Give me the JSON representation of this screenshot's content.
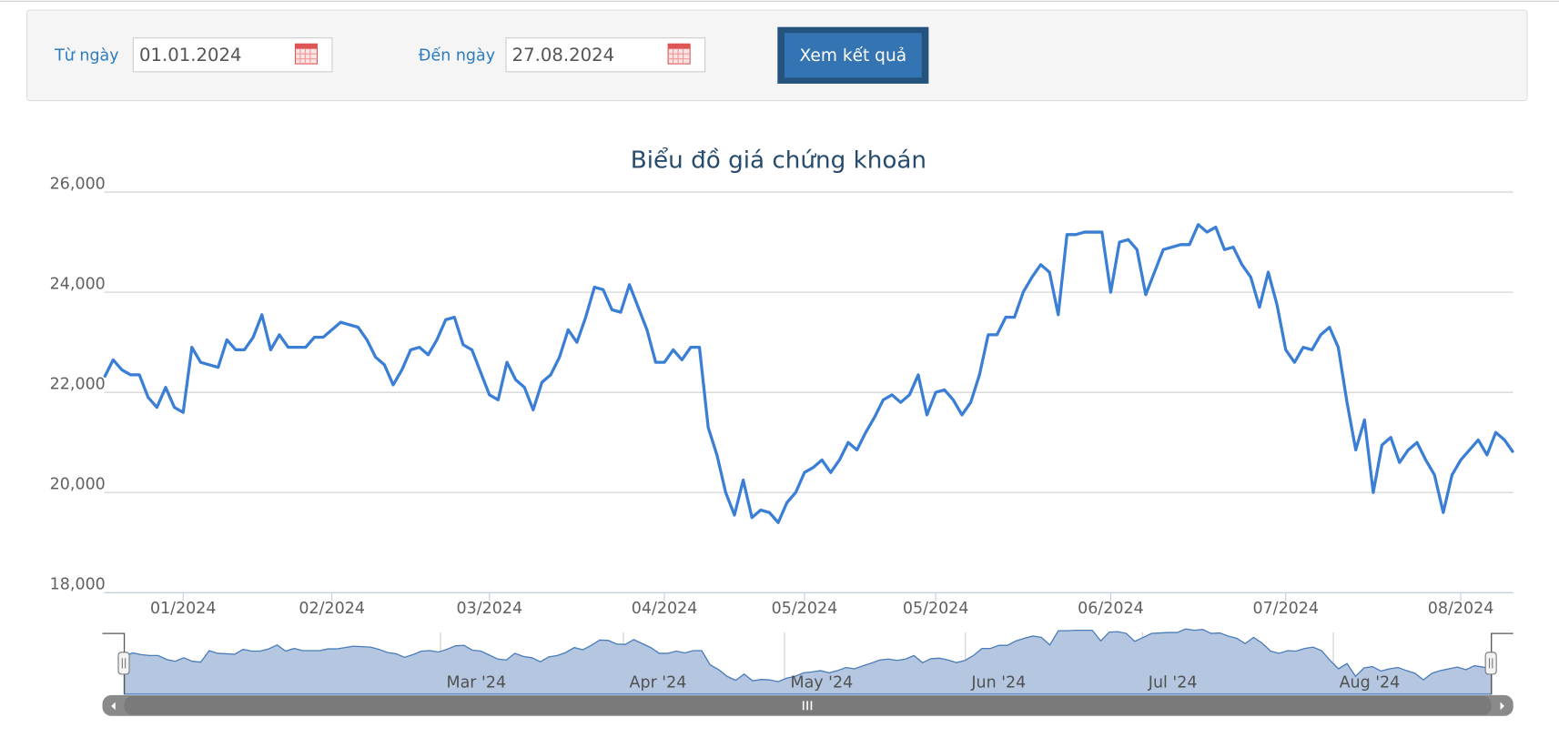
{
  "form": {
    "from_label": "Từ ngày",
    "from_value": "01.01.2024",
    "to_label": "Đến ngày",
    "to_value": "27.08.2024",
    "button": "Xem kết quả"
  },
  "chart_data": {
    "type": "line",
    "title": "Biểu đồ giá chứng khoán",
    "categories": [
      null,
      null,
      null,
      null,
      null,
      null,
      null,
      null,
      null,
      "01/2024",
      null,
      null,
      null,
      null,
      null,
      null,
      null,
      null,
      null,
      null,
      null,
      null,
      null,
      null,
      null,
      null,
      "02/2024",
      null,
      null,
      null,
      null,
      null,
      null,
      null,
      null,
      null,
      null,
      null,
      null,
      null,
      null,
      null,
      null,
      null,
      "03/2024",
      null,
      null,
      null,
      null,
      null,
      null,
      null,
      null,
      null,
      null,
      null,
      null,
      null,
      null,
      null,
      null,
      null,
      null,
      null,
      "04/2024",
      null,
      null,
      null,
      null,
      null,
      null,
      null,
      null,
      null,
      null,
      null,
      null,
      null,
      null,
      null,
      "05/2024",
      null,
      null,
      null,
      null,
      null,
      null,
      null,
      null,
      null,
      null,
      null,
      null,
      null,
      null,
      "05/2024",
      null,
      null,
      null,
      null,
      null,
      null,
      null,
      null,
      null,
      null,
      null,
      null,
      null,
      null,
      null,
      null,
      null,
      null,
      null,
      "06/2024",
      null,
      null,
      null,
      null,
      null,
      null,
      null,
      null,
      null,
      null,
      null,
      null,
      null,
      null,
      null,
      null,
      null,
      null,
      null,
      "07/2024",
      null,
      null,
      null,
      null,
      null,
      null,
      null,
      null,
      null,
      null,
      null,
      null,
      null,
      null,
      null,
      null,
      null,
      null,
      null,
      "08/2024",
      null,
      null,
      null,
      null,
      null,
      null
    ],
    "values": [
      22300,
      22650,
      22450,
      22350,
      22350,
      21900,
      21700,
      22100,
      21700,
      21600,
      22900,
      22600,
      22550,
      22500,
      23050,
      22850,
      22850,
      23100,
      23550,
      22850,
      23150,
      22900,
      22900,
      22900,
      23100,
      23100,
      23250,
      23400,
      23350,
      23300,
      23050,
      22700,
      22550,
      22150,
      22450,
      22850,
      22900,
      22750,
      23050,
      23450,
      23500,
      22950,
      22850,
      22400,
      21950,
      21850,
      22600,
      22250,
      22100,
      21650,
      22200,
      22350,
      22700,
      23250,
      23000,
      23500,
      24100,
      24050,
      23650,
      23600,
      24150,
      23700,
      23250,
      22600,
      22600,
      22850,
      22650,
      22900,
      22900,
      21300,
      20750,
      20000,
      19550,
      20250,
      19500,
      19650,
      19600,
      19400,
      19800,
      20000,
      20400,
      20500,
      20650,
      20400,
      20650,
      21000,
      20850,
      21200,
      21500,
      21850,
      21950,
      21800,
      21950,
      22350,
      21550,
      22000,
      22050,
      21850,
      21550,
      21800,
      22350,
      23150,
      23150,
      23500,
      23500,
      24000,
      24300,
      24550,
      24400,
      23550,
      25150,
      25150,
      25200,
      25200,
      25200,
      24000,
      25000,
      25050,
      24850,
      23950,
      24400,
      24850,
      24900,
      24950,
      24950,
      25350,
      25200,
      25300,
      24850,
      24900,
      24550,
      24300,
      23700,
      24400,
      23750,
      22850,
      22600,
      22900,
      22850,
      23150,
      23300,
      22900,
      21800,
      20850,
      21450,
      20000,
      20950,
      21100,
      20600,
      20850,
      21000,
      20650,
      20350,
      19600,
      20350,
      20650,
      20850,
      21050,
      20750,
      21200,
      21050,
      20800
    ],
    "color": "#3a7fd5",
    "ylim": [
      18000,
      26000
    ],
    "yticks": [
      {
        "value": 18000,
        "label": "18,000"
      },
      {
        "value": 20000,
        "label": "20,000"
      },
      {
        "value": 22000,
        "label": "22,000"
      },
      {
        "value": 24000,
        "label": "24,000"
      },
      {
        "value": 26000,
        "label": "26,000"
      }
    ],
    "grid": true,
    "navigator": {
      "labels": [
        "Mar '24",
        "Apr '24",
        "May '24",
        "Jun '24",
        "Jul '24",
        "Aug '24"
      ],
      "color": "#b5c7e0"
    }
  }
}
